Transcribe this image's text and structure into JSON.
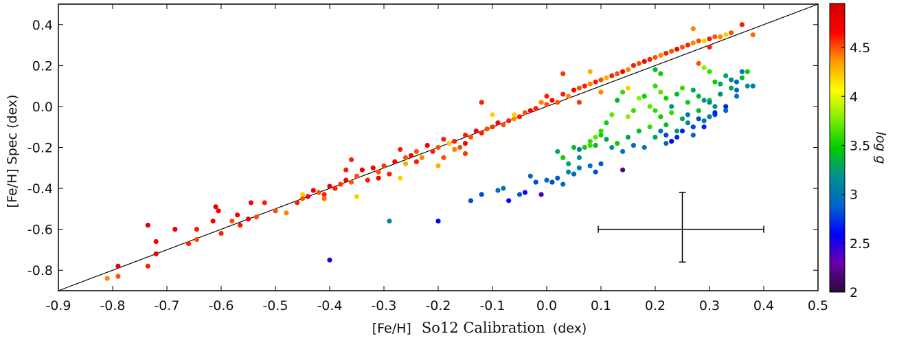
{
  "chart_data": {
    "type": "scatter",
    "xlabel_prefix": "[Fe/H]",
    "xlabel_main": "So12  Calibration",
    "xlabel_unit": "(dex)",
    "ylabel": "[Fe/H]  Spec (dex)",
    "colorbar_label": "log g",
    "xlim": [
      -0.9,
      0.5
    ],
    "ylim": [
      -0.9,
      0.5
    ],
    "xticks": [
      "-0.9",
      "-0.8",
      "-0.7",
      "-0.6",
      "-0.5",
      "-0.4",
      "-0.3",
      "-0.2",
      "-0.1",
      "0.0",
      "0.1",
      "0.2",
      "0.3",
      "0.4",
      "0.5"
    ],
    "yticks": [
      "-0.8",
      "-0.6",
      "-0.4",
      "-0.2",
      "0.0",
      "0.2",
      "0.4"
    ],
    "colorbar_range": [
      2,
      4.95
    ],
    "colorbar_ticks": [
      "2",
      "2.5",
      "3",
      "3.5",
      "4",
      "4.5"
    ],
    "one_to_one_line": true,
    "error_bar": {
      "x": 0.25,
      "y": -0.6,
      "x_minus": 0.155,
      "x_plus": 0.15,
      "y_minus": 0.16,
      "y_plus": 0.18
    },
    "colormap": [
      "#2a0a3a",
      "#6a00a8",
      "#0000ff",
      "#0066cc",
      "#009090",
      "#00cc00",
      "#7fee00",
      "#ffff00",
      "#ff9900",
      "#ff0000",
      "#cc0000"
    ],
    "points": [
      [
        -0.81,
        -0.84,
        4.4
      ],
      [
        -0.79,
        -0.78,
        4.8
      ],
      [
        -0.79,
        -0.83,
        4.5
      ],
      [
        -0.735,
        -0.58,
        4.85
      ],
      [
        -0.735,
        -0.78,
        4.6
      ],
      [
        -0.72,
        -0.66,
        4.7
      ],
      [
        -0.72,
        -0.72,
        4.8
      ],
      [
        -0.685,
        -0.6,
        4.75
      ],
      [
        -0.66,
        -0.67,
        4.6
      ],
      [
        -0.645,
        -0.65,
        4.5
      ],
      [
        -0.645,
        -0.6,
        4.6
      ],
      [
        -0.615,
        -0.56,
        4.7
      ],
      [
        -0.61,
        -0.49,
        4.8
      ],
      [
        -0.605,
        -0.51,
        4.7
      ],
      [
        -0.6,
        -0.62,
        4.6
      ],
      [
        -0.58,
        -0.56,
        4.5
      ],
      [
        -0.57,
        -0.53,
        4.7
      ],
      [
        -0.565,
        -0.58,
        4.6
      ],
      [
        -0.55,
        -0.55,
        4.8
      ],
      [
        -0.545,
        -0.47,
        4.7
      ],
      [
        -0.535,
        -0.54,
        4.5
      ],
      [
        -0.52,
        -0.47,
        4.6
      ],
      [
        -0.5,
        -0.51,
        4.5
      ],
      [
        -0.48,
        -0.52,
        4.4
      ],
      [
        -0.46,
        -0.47,
        4.6
      ],
      [
        -0.45,
        -0.45,
        4.5
      ],
      [
        -0.45,
        -0.43,
        4.2
      ],
      [
        -0.44,
        -0.44,
        4.7
      ],
      [
        -0.43,
        -0.41,
        4.75
      ],
      [
        -0.42,
        -0.42,
        4.5
      ],
      [
        -0.41,
        -0.43,
        4.6
      ],
      [
        -0.41,
        -0.45,
        4.45
      ],
      [
        -0.4,
        -0.39,
        4.75
      ],
      [
        -0.39,
        -0.4,
        4.6
      ],
      [
        -0.38,
        -0.38,
        4.55
      ],
      [
        -0.37,
        -0.36,
        4.7
      ],
      [
        -0.37,
        -0.31,
        4.6
      ],
      [
        -0.36,
        -0.26,
        4.6
      ],
      [
        -0.36,
        -0.37,
        4.5
      ],
      [
        -0.35,
        -0.44,
        4.2
      ],
      [
        -0.35,
        -0.34,
        4.5
      ],
      [
        -0.34,
        -0.31,
        4.75
      ],
      [
        -0.33,
        -0.36,
        4.6
      ],
      [
        -0.32,
        -0.3,
        4.7
      ],
      [
        -0.31,
        -0.32,
        4.5
      ],
      [
        -0.31,
        -0.35,
        4.7
      ],
      [
        -0.3,
        -0.29,
        4.55
      ],
      [
        -0.29,
        -0.33,
        4.6
      ],
      [
        -0.28,
        -0.27,
        4.7
      ],
      [
        -0.27,
        -0.21,
        4.6
      ],
      [
        -0.27,
        -0.35,
        4.2
      ],
      [
        -0.26,
        -0.25,
        4.5
      ],
      [
        -0.26,
        -0.28,
        4.3
      ],
      [
        -0.25,
        -0.24,
        4.75
      ],
      [
        -0.24,
        -0.27,
        4.6
      ],
      [
        -0.24,
        -0.22,
        4.5
      ],
      [
        -0.23,
        -0.25,
        4.4
      ],
      [
        -0.22,
        -0.19,
        4.7
      ],
      [
        -0.21,
        -0.22,
        4.6
      ],
      [
        -0.2,
        -0.2,
        4.5
      ],
      [
        -0.2,
        -0.29,
        4.3
      ],
      [
        -0.19,
        -0.16,
        4.6
      ],
      [
        -0.19,
        -0.25,
        4.5
      ],
      [
        -0.18,
        -0.18,
        4.7
      ],
      [
        -0.17,
        -0.17,
        4.6
      ],
      [
        -0.17,
        -0.21,
        4.4
      ],
      [
        -0.16,
        -0.2,
        4.5
      ],
      [
        -0.15,
        -0.14,
        4.6
      ],
      [
        -0.15,
        -0.18,
        4.7
      ],
      [
        -0.14,
        -0.15,
        4.5
      ],
      [
        -0.13,
        -0.12,
        4.75
      ],
      [
        -0.12,
        -0.13,
        4.6
      ],
      [
        -0.11,
        -0.11,
        4.5
      ],
      [
        -0.1,
        -0.1,
        4.55
      ],
      [
        -0.09,
        -0.08,
        4.7
      ],
      [
        -0.08,
        -0.09,
        4.5
      ],
      [
        -0.07,
        -0.07,
        4.6
      ],
      [
        -0.06,
        -0.06,
        4.4
      ],
      [
        -0.06,
        -0.04,
        4.2
      ],
      [
        -0.05,
        -0.05,
        4.6
      ],
      [
        -0.04,
        -0.03,
        4.5
      ],
      [
        -0.03,
        -0.02,
        4.7
      ],
      [
        -0.02,
        -0.01,
        4.6
      ],
      [
        -0.01,
        0.02,
        4.4
      ],
      [
        0.0,
        0.01,
        4.5
      ],
      [
        0.0,
        0.05,
        4.6
      ],
      [
        0.01,
        0.03,
        4.7
      ],
      [
        0.02,
        0.02,
        4.5
      ],
      [
        0.03,
        0.06,
        4.6
      ],
      [
        0.04,
        0.05,
        4.4
      ],
      [
        0.05,
        0.08,
        4.7
      ],
      [
        0.06,
        0.09,
        4.5
      ],
      [
        0.07,
        0.1,
        4.6
      ],
      [
        0.08,
        0.11,
        4.4
      ],
      [
        0.09,
        0.12,
        4.6
      ],
      [
        0.1,
        0.13,
        4.5
      ],
      [
        0.11,
        0.14,
        4.3
      ],
      [
        0.12,
        0.15,
        4.6
      ],
      [
        0.13,
        0.16,
        4.5
      ],
      [
        0.14,
        0.17,
        4.7
      ],
      [
        0.15,
        0.18,
        4.4
      ],
      [
        0.16,
        0.2,
        4.6
      ],
      [
        0.17,
        0.21,
        4.5
      ],
      [
        0.18,
        0.22,
        4.7
      ],
      [
        0.19,
        0.23,
        4.6
      ],
      [
        0.2,
        0.24,
        4.5
      ],
      [
        0.21,
        0.25,
        4.4
      ],
      [
        0.22,
        0.26,
        4.6
      ],
      [
        0.23,
        0.27,
        4.5
      ],
      [
        0.24,
        0.28,
        4.7
      ],
      [
        0.25,
        0.29,
        4.5
      ],
      [
        0.26,
        0.3,
        4.6
      ],
      [
        0.27,
        0.31,
        4.4
      ],
      [
        0.28,
        0.32,
        4.5
      ],
      [
        0.29,
        0.32,
        4.2
      ],
      [
        0.3,
        0.33,
        4.6
      ],
      [
        0.31,
        0.34,
        4.5
      ],
      [
        0.32,
        0.34,
        4.4
      ],
      [
        0.33,
        0.35,
        4.2
      ],
      [
        0.34,
        0.36,
        4.5
      ],
      [
        0.36,
        0.4,
        4.6
      ],
      [
        0.38,
        0.35,
        4.45
      ],
      [
        0.3,
        0.29,
        4.6
      ],
      [
        0.27,
        0.38,
        4.4
      ],
      [
        0.28,
        0.21,
        4.5
      ],
      [
        0.06,
        0.02,
        4.55
      ],
      [
        0.1,
        0.07,
        4.4
      ],
      [
        0.13,
        0.03,
        4.6
      ],
      [
        0.15,
        0.09,
        4.2
      ],
      [
        0.08,
        0.17,
        4.3
      ],
      [
        0.03,
        0.16,
        4.55
      ],
      [
        -0.1,
        -0.04,
        4.2
      ],
      [
        -0.12,
        0.02,
        4.6
      ],
      [
        -0.18,
        -0.18,
        4.2
      ],
      [
        -0.15,
        -0.23,
        4.55
      ],
      [
        0.0,
        -0.36,
        2.9
      ],
      [
        0.01,
        -0.37,
        2.8
      ],
      [
        0.02,
        -0.35,
        2.85
      ],
      [
        0.03,
        -0.38,
        2.9
      ],
      [
        0.05,
        -0.33,
        2.9
      ],
      [
        0.06,
        -0.3,
        3.0
      ],
      [
        0.08,
        -0.29,
        2.9
      ],
      [
        0.09,
        -0.32,
        2.8
      ],
      [
        0.1,
        -0.28,
        2.85
      ],
      [
        -0.02,
        -0.37,
        2.8
      ],
      [
        -0.03,
        -0.34,
        2.9
      ],
      [
        -0.04,
        -0.42,
        2.6
      ],
      [
        -0.05,
        -0.43,
        2.85
      ],
      [
        -0.07,
        -0.46,
        2.6
      ],
      [
        -0.08,
        -0.4,
        3.0
      ],
      [
        -0.09,
        -0.41,
        2.9
      ],
      [
        -0.12,
        -0.43,
        2.8
      ],
      [
        -0.14,
        -0.46,
        2.8
      ],
      [
        -0.2,
        -0.56,
        2.6
      ],
      [
        -0.29,
        -0.56,
        3.1
      ],
      [
        -0.4,
        -0.75,
        2.5
      ],
      [
        0.14,
        -0.31,
        2.2
      ],
      [
        -0.01,
        -0.43,
        2.4
      ],
      [
        0.04,
        -0.28,
        3.3
      ],
      [
        0.03,
        -0.25,
        3.5
      ],
      [
        0.02,
        -0.22,
        3.3
      ],
      [
        0.05,
        -0.2,
        3.4
      ],
      [
        0.06,
        -0.21,
        3.1
      ],
      [
        0.08,
        -0.17,
        3.6
      ],
      [
        0.09,
        -0.19,
        3.4
      ],
      [
        0.1,
        -0.14,
        3.5
      ],
      [
        0.11,
        -0.16,
        3.3
      ],
      [
        0.12,
        -0.2,
        3.2
      ],
      [
        0.13,
        -0.18,
        3.5
      ],
      [
        0.14,
        -0.22,
        3.0
      ],
      [
        0.15,
        -0.15,
        3.3
      ],
      [
        0.16,
        -0.19,
        2.9
      ],
      [
        0.17,
        -0.12,
        3.4
      ],
      [
        0.18,
        -0.2,
        3.0
      ],
      [
        0.19,
        -0.1,
        3.6
      ],
      [
        0.2,
        -0.15,
        3.3
      ],
      [
        0.21,
        -0.05,
        3.5
      ],
      [
        0.22,
        -0.09,
        3.4
      ],
      [
        0.22,
        -0.18,
        2.9
      ],
      [
        0.23,
        -0.03,
        3.6
      ],
      [
        0.24,
        -0.12,
        3.2
      ],
      [
        0.25,
        -0.06,
        3.3
      ],
      [
        0.26,
        -0.08,
        3.1
      ],
      [
        0.27,
        -0.14,
        2.9
      ],
      [
        0.28,
        -0.02,
        3.4
      ],
      [
        0.29,
        -0.07,
        3.0
      ],
      [
        0.3,
        0.03,
        3.5
      ],
      [
        0.3,
        -0.05,
        3.1
      ],
      [
        0.31,
        0.0,
        3.2
      ],
      [
        0.32,
        0.06,
        3.4
      ],
      [
        0.33,
        -0.02,
        2.9
      ],
      [
        0.34,
        0.09,
        3.3
      ],
      [
        0.35,
        0.05,
        3.0
      ],
      [
        0.36,
        0.14,
        3.4
      ],
      [
        0.37,
        0.1,
        3.2
      ],
      [
        0.37,
        0.17,
        3.5
      ],
      [
        0.38,
        0.1,
        3.0
      ],
      [
        0.35,
        0.12,
        2.9
      ],
      [
        0.33,
        0.0,
        2.7
      ],
      [
        0.31,
        -0.04,
        2.8
      ],
      [
        0.29,
        -0.1,
        2.7
      ],
      [
        0.27,
        -0.1,
        2.8
      ],
      [
        0.25,
        -0.12,
        2.7
      ],
      [
        0.24,
        -0.15,
        2.7
      ],
      [
        0.23,
        -0.17,
        2.6
      ],
      [
        0.22,
        -0.14,
        2.8
      ],
      [
        0.21,
        -0.12,
        3.0
      ],
      [
        0.2,
        -0.02,
        3.6
      ],
      [
        0.19,
        0.0,
        3.7
      ],
      [
        0.18,
        0.05,
        3.5
      ],
      [
        0.17,
        0.04,
        3.8
      ],
      [
        0.16,
        -0.02,
        3.6
      ],
      [
        0.15,
        -0.05,
        3.8
      ],
      [
        0.14,
        0.07,
        3.6
      ],
      [
        0.13,
        0.03,
        3.4
      ],
      [
        0.12,
        -0.04,
        3.7
      ],
      [
        0.11,
        -0.08,
        3.5
      ],
      [
        0.1,
        -0.12,
        3.6
      ],
      [
        0.09,
        -0.15,
        3.7
      ],
      [
        0.08,
        -0.19,
        3.6
      ],
      [
        0.07,
        -0.2,
        3.5
      ],
      [
        0.06,
        -0.25,
        3.2
      ],
      [
        0.04,
        -0.32,
        3.1
      ],
      [
        0.29,
        0.19,
        3.8
      ],
      [
        0.3,
        0.17,
        3.6
      ],
      [
        0.31,
        0.12,
        3.5
      ],
      [
        0.32,
        0.11,
        3.3
      ],
      [
        0.28,
        0.05,
        3.4
      ],
      [
        0.26,
        0.02,
        3.5
      ],
      [
        0.24,
        0.06,
        3.4
      ],
      [
        0.23,
        0.0,
        3.2
      ],
      [
        0.21,
        0.07,
        3.7
      ],
      [
        0.2,
        0.1,
        3.6
      ],
      [
        0.25,
        0.09,
        3.6
      ],
      [
        0.22,
        0.04,
        3.5
      ],
      [
        0.27,
        0.08,
        3.3
      ],
      [
        0.32,
        0.06,
        3.2
      ],
      [
        0.34,
        0.13,
        3.1
      ],
      [
        0.36,
        0.17,
        3.0
      ],
      [
        0.35,
        0.08,
        2.9
      ],
      [
        0.33,
        0.15,
        3.3
      ],
      [
        0.3,
        0.02,
        3.1
      ],
      [
        0.29,
        0.03,
        3.2
      ],
      [
        0.31,
        -0.03,
        2.7
      ],
      [
        0.28,
        -0.06,
        2.8
      ],
      [
        0.26,
        -0.04,
        3.0
      ],
      [
        0.2,
        0.18,
        3.4
      ],
      [
        0.21,
        0.16,
        3.5
      ]
    ]
  }
}
